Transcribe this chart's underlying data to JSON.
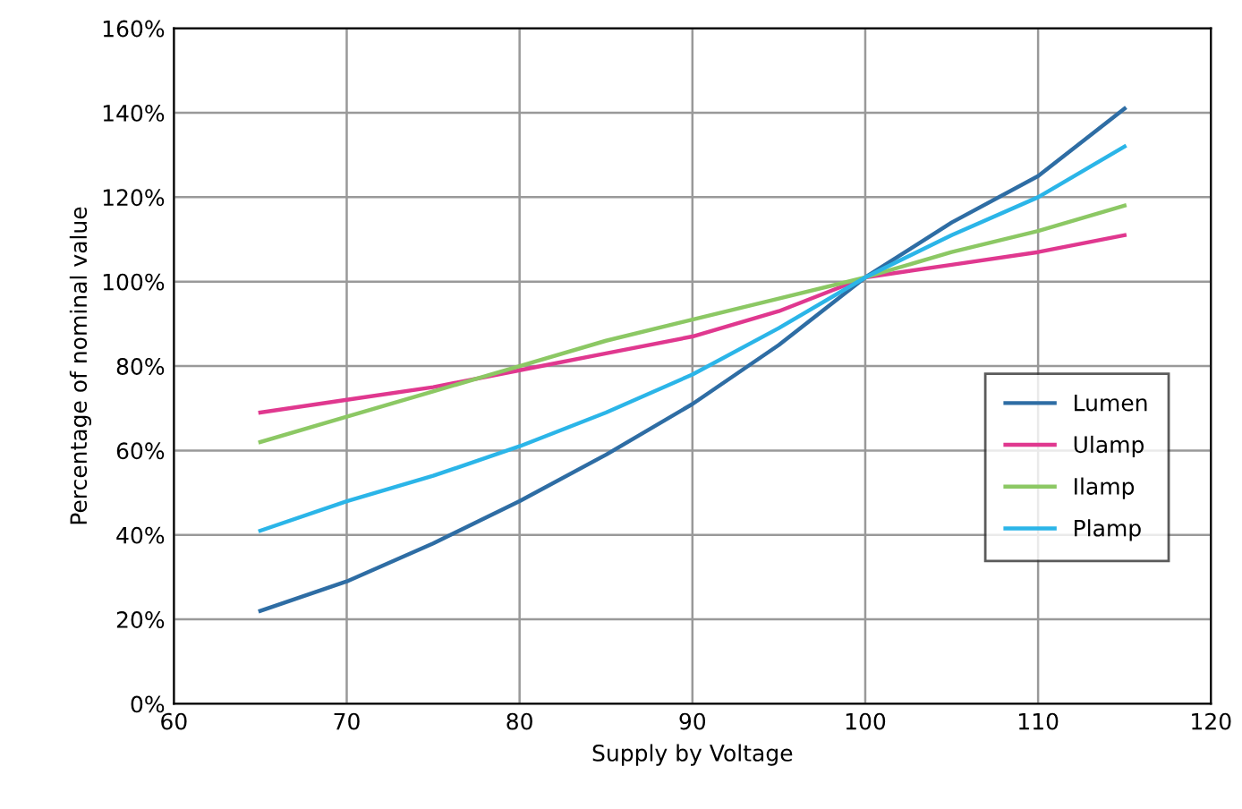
{
  "chart_data": {
    "type": "line",
    "xlabel": "Supply by Voltage",
    "ylabel": "Percentage of nominal value",
    "x": [
      65,
      70,
      75,
      80,
      85,
      90,
      95,
      100,
      105,
      110,
      115
    ],
    "series": [
      {
        "name": "Lumen",
        "color": "#2e6da4",
        "values": [
          22,
          29,
          38,
          48,
          59,
          71,
          85,
          101,
          114,
          125,
          141
        ]
      },
      {
        "name": "Ulamp",
        "color": "#e0388f",
        "values": [
          69,
          72,
          75,
          79,
          83,
          87,
          93,
          101,
          104,
          107,
          111
        ]
      },
      {
        "name": "Ilamp",
        "color": "#8cc864",
        "values": [
          62,
          68,
          74,
          80,
          86,
          91,
          96,
          101,
          107,
          112,
          118
        ]
      },
      {
        "name": "Plamp",
        "color": "#2bb5e8",
        "values": [
          41,
          48,
          54,
          61,
          69,
          78,
          89,
          101,
          111,
          120,
          132
        ]
      }
    ],
    "xlim": [
      60,
      120
    ],
    "xticks": [
      60,
      70,
      80,
      90,
      100,
      110,
      120
    ],
    "ylim": [
      0,
      160
    ],
    "yticks": [
      {
        "value": 0,
        "label": "0%"
      },
      {
        "value": 20,
        "label": "20%"
      },
      {
        "value": 40,
        "label": "40%"
      },
      {
        "value": 60,
        "label": "60%"
      },
      {
        "value": 80,
        "label": "80%"
      },
      {
        "value": 100,
        "label": "100%"
      },
      {
        "value": 120,
        "label": "120%"
      },
      {
        "value": 140,
        "label": "140%"
      },
      {
        "value": 160,
        "label": "160%"
      }
    ],
    "grid": true,
    "legend": "right",
    "marker": "none",
    "line_style": "solid"
  }
}
